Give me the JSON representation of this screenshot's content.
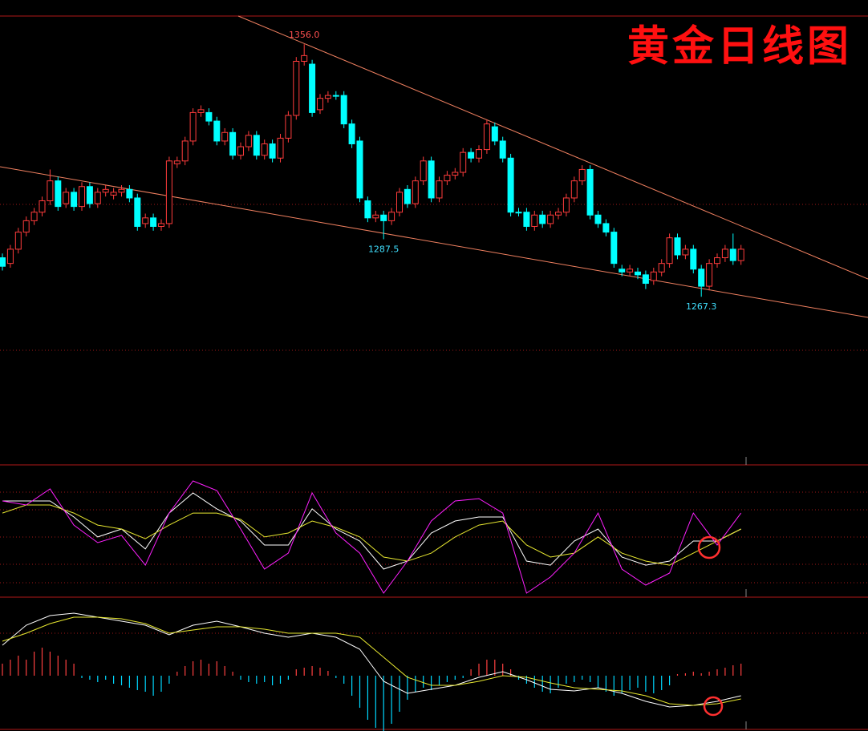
{
  "chart_data": [
    {
      "type": "candlestick",
      "title": "黄金日线图",
      "open": [
        1281,
        1279,
        1284,
        1290,
        1294,
        1297,
        1301,
        1308,
        1300,
        1304,
        1299,
        1306,
        1300,
        1304,
        1303,
        1304,
        1305,
        1302,
        1293,
        1295,
        1292,
        1293,
        1314,
        1315,
        1322,
        1332,
        1332,
        1329,
        1322,
        1325,
        1317,
        1320,
        1324,
        1317,
        1321,
        1316,
        1323,
        1331,
        1350,
        1349,
        1333,
        1337,
        1338,
        1338,
        1328,
        1322,
        1301,
        1295,
        1296,
        1294,
        1297,
        1305,
        1300,
        1308,
        1315,
        1302,
        1308,
        1310,
        1311,
        1318,
        1316,
        1319,
        1327,
        1322,
        1316,
        1297,
        1297,
        1292,
        1296,
        1293,
        1296,
        1297,
        1302,
        1308,
        1312,
        1296,
        1293,
        1290,
        1277,
        1276,
        1276,
        1275,
        1273,
        1276,
        1279,
        1288,
        1282,
        1284,
        1277,
        1271,
        1279,
        1281,
        1284,
        1280
      ],
      "high": [
        1282.5,
        1285.5,
        1291.5,
        1295.5,
        1298.5,
        1302.5,
        1312,
        1309.5,
        1305.5,
        1305.5,
        1307.5,
        1307.5,
        1305.5,
        1306.5,
        1305.5,
        1306.5,
        1306.5,
        1303.5,
        1296.5,
        1296.5,
        1294.5,
        1316.5,
        1316.5,
        1323.5,
        1333.5,
        1334.5,
        1333.5,
        1330.5,
        1326.5,
        1326.5,
        1321.5,
        1325.5,
        1325.5,
        1322.5,
        1322.5,
        1324.5,
        1332.5,
        1351.5,
        1356.0,
        1350.5,
        1338.5,
        1339.5,
        1339.5,
        1339.5,
        1329.5,
        1323.5,
        1302.5,
        1297.5,
        1297.5,
        1298.5,
        1305.5,
        1306.5,
        1309.5,
        1316.5,
        1316.5,
        1309.5,
        1311.5,
        1312.5,
        1319.5,
        1319.5,
        1320.5,
        1329.5,
        1328.5,
        1323.5,
        1317.5,
        1298.5,
        1298.5,
        1297.5,
        1297.5,
        1297.5,
        1298.5,
        1303.5,
        1309.5,
        1313.5,
        1313.5,
        1297.5,
        1294.5,
        1291.5,
        1278.5,
        1278.5,
        1277.5,
        1276.5,
        1277.5,
        1280.5,
        1289.5,
        1289.5,
        1285.5,
        1285.5,
        1278.5,
        1280.5,
        1282.5,
        1285.5,
        1289.5,
        1285.5
      ],
      "low": [
        1276.5,
        1277.5,
        1282.5,
        1288.5,
        1292.5,
        1295.5,
        1299.5,
        1297.5,
        1298.5,
        1297.5,
        1297.5,
        1298.5,
        1298.5,
        1302.5,
        1301.5,
        1302.5,
        1300.5,
        1290.5,
        1291.5,
        1290.5,
        1290.5,
        1291.5,
        1312.5,
        1313.5,
        1320.5,
        1330.5,
        1327.5,
        1320.5,
        1320.5,
        1315.5,
        1315.5,
        1318.5,
        1315.5,
        1315.5,
        1314.5,
        1314.5,
        1321.5,
        1329.5,
        1348.5,
        1330.5,
        1331.5,
        1335.5,
        1336.5,
        1326.5,
        1319.5,
        1300.5,
        1293.5,
        1293.5,
        1287.5,
        1292.5,
        1295.5,
        1298.5,
        1298.5,
        1306.5,
        1300.5,
        1300.5,
        1306.5,
        1308.5,
        1309.5,
        1314.5,
        1314.5,
        1317.5,
        1320.5,
        1314.5,
        1295.5,
        1295.5,
        1290.5,
        1290.5,
        1291.5,
        1291.5,
        1294.5,
        1295.5,
        1300.5,
        1306.5,
        1294.5,
        1291.5,
        1288.5,
        1277.5,
        1274.5,
        1274.5,
        1273.5,
        1270,
        1271.5,
        1274.5,
        1277.5,
        1280.5,
        1280.5,
        1275.5,
        1267.3,
        1269.5,
        1277.5,
        1279.5,
        1278.5,
        1278.5
      ],
      "close": [
        1278,
        1284,
        1290,
        1294,
        1297,
        1301,
        1308,
        1299,
        1304,
        1299,
        1306,
        1300,
        1304,
        1305,
        1304,
        1305,
        1302,
        1292,
        1295,
        1292,
        1293,
        1315,
        1315,
        1322,
        1332,
        1333,
        1329,
        1322,
        1325,
        1317,
        1320,
        1324,
        1317,
        1321,
        1316,
        1323,
        1331,
        1350,
        1352,
        1332,
        1337,
        1338,
        1338,
        1328,
        1321,
        1302,
        1295,
        1296,
        1294,
        1297,
        1304,
        1300,
        1308,
        1315,
        1302,
        1308,
        1310,
        1311,
        1318,
        1316,
        1319,
        1328,
        1322,
        1316,
        1297,
        1297,
        1292,
        1296,
        1293,
        1296,
        1297,
        1302,
        1308,
        1312,
        1296,
        1293,
        1290,
        1279,
        1276,
        1277,
        1275,
        1272,
        1276,
        1279,
        1288,
        1282,
        1284,
        1277,
        1271,
        1279,
        1281,
        1284,
        1280,
        1284
      ],
      "ylim": [
        1248.5,
        1365.9
      ],
      "up_color": "#ff3c3c",
      "down_color": "#00ffff",
      "annotations": [
        {
          "label": "1356.0",
          "value": 1356.0,
          "x": 38,
          "color": "#ff5050"
        },
        {
          "label": "1287.5",
          "value": 1287.5,
          "x": 48,
          "color": "#40e0ff"
        },
        {
          "label": "1267.3",
          "value": 1267.3,
          "x": 88,
          "color": "#40e0ff"
        }
      ]
    },
    {
      "type": "line",
      "x": [
        0,
        3,
        6,
        9,
        12,
        15,
        18,
        21,
        24,
        27,
        30,
        33,
        36,
        39,
        42,
        45,
        48,
        51,
        54,
        57,
        60,
        63,
        66,
        69,
        72,
        75,
        78,
        81,
        84,
        87,
        90,
        93
      ],
      "series": [
        {
          "color": "#ffffff",
          "values": [
            72.7,
            72.7,
            72.7,
            60.6,
            45.5,
            51.5,
            36.4,
            63.6,
            78.8,
            66.7,
            57.6,
            39.4,
            39.4,
            66.7,
            51.5,
            42.4,
            21.2,
            27.3,
            48.5,
            57.6,
            60.6,
            60.6,
            27.3,
            24.2,
            42.4,
            51.5,
            30.3,
            24.2,
            27.3,
            42.4,
            42.4,
            51.5
          ]
        },
        {
          "color": "#e8e830",
          "values": [
            63.6,
            69.7,
            69.7,
            63.6,
            54.5,
            51.5,
            44.2,
            54.5,
            63.6,
            63.6,
            58.8,
            45.5,
            48.5,
            57.6,
            52.7,
            45.5,
            30.3,
            27.3,
            33.3,
            45.5,
            54.5,
            57.6,
            39.4,
            30.3,
            33.3,
            45.5,
            33.3,
            27.3,
            24.2,
            33.3,
            42.4,
            51.5
          ]
        },
        {
          "color": "#ff20ff",
          "values": [
            72.7,
            69.7,
            81.8,
            54.5,
            41.2,
            46.7,
            24.2,
            63.6,
            87.9,
            80.6,
            51.5,
            21.2,
            33.3,
            78.8,
            48.5,
            33.3,
            3.0,
            27.3,
            57.6,
            72.7,
            74.5,
            63.6,
            3.0,
            15.2,
            33.3,
            63.6,
            21.2,
            9.1,
            18.2,
            63.6,
            39.4,
            63.6
          ]
        }
      ],
      "ylim": [
        0,
        100
      ]
    },
    {
      "type": "macd",
      "x": [
        0,
        3,
        6,
        9,
        12,
        15,
        18,
        21,
        24,
        27,
        30,
        33,
        36,
        39,
        42,
        45,
        48,
        51,
        54,
        57,
        60,
        63,
        66,
        69,
        72,
        75,
        78,
        81,
        84,
        87,
        90,
        93
      ],
      "series": [
        {
          "color": "#ffffff",
          "values": [
            3.8,
            6.3,
            7.5,
            7.8,
            7.3,
            6.8,
            6.3,
            5.1,
            6.3,
            6.8,
            6.1,
            5.3,
            4.8,
            5.3,
            4.8,
            3.3,
            -0.7,
            -2.2,
            -1.7,
            -1.2,
            -0.2,
            0.5,
            -0.5,
            -1.7,
            -1.9,
            -1.5,
            -2.2,
            -3.2,
            -3.9,
            -3.7,
            -3.2,
            -2.5
          ]
        },
        {
          "color": "#e8e830",
          "values": [
            4.3,
            5.3,
            6.5,
            7.3,
            7.3,
            7.1,
            6.5,
            5.3,
            5.7,
            6.1,
            6.1,
            5.8,
            5.3,
            5.3,
            5.3,
            4.8,
            2.3,
            -0.2,
            -1.2,
            -1.2,
            -0.7,
            0,
            -0.2,
            -0.9,
            -1.5,
            -1.7,
            -1.9,
            -2.5,
            -3.5,
            -3.7,
            -3.5,
            -2.9
          ]
        }
      ],
      "histogram": [
        1.5,
        2.0,
        2.5,
        2.0,
        3.0,
        3.5,
        3.0,
        2.5,
        2.0,
        1.5,
        -0.3,
        -0.5,
        -0.8,
        -0.5,
        -1.0,
        -1.2,
        -1.5,
        -1.8,
        -2.0,
        -2.5,
        -2.0,
        -1.0,
        0.5,
        1.2,
        1.8,
        2.0,
        1.5,
        1.8,
        1.2,
        0.5,
        -0.5,
        -0.8,
        -1.0,
        -0.8,
        -1.2,
        -1.0,
        -0.5,
        0.8,
        1.0,
        1.2,
        1.0,
        0.6,
        -0.3,
        -1.0,
        -2.5,
        -4.0,
        -5.5,
        -6.5,
        -7.0,
        -6.0,
        -4.5,
        -3.0,
        -2.0,
        -1.5,
        -1.8,
        -1.2,
        -0.8,
        -0.5,
        -0.3,
        0.8,
        1.5,
        2.0,
        2.0,
        1.5,
        0.8,
        -0.5,
        -1.0,
        -1.5,
        -2.0,
        -2.2,
        -1.5,
        -1.0,
        -0.8,
        -0.5,
        -0.8,
        -1.5,
        -2.0,
        -2.5,
        -2.2,
        -1.8,
        -1.5,
        -2.0,
        -2.2,
        -1.8,
        -1.2,
        0.2,
        0.3,
        0.5,
        0.3,
        0.5,
        0.8,
        1.0,
        1.3,
        1.5
      ],
      "up_color": "#ff4040",
      "down_color": "#00d8ff",
      "ylim": [
        -6.7,
        9.8
      ]
    }
  ]
}
